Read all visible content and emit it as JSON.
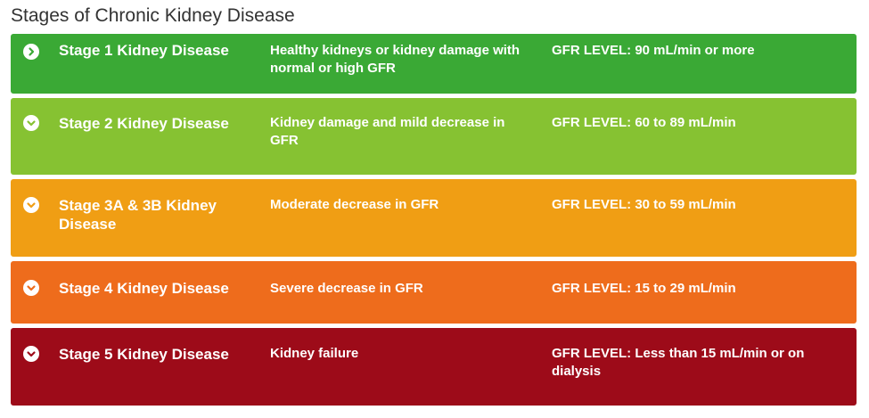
{
  "title": "Stages of Chronic Kidney Disease",
  "stages": [
    {
      "name": "Stage 1 Kidney Disease",
      "description": "Healthy kidneys or kidney damage with normal or high GFR",
      "gfr": "GFR LEVEL: 90 mL/min or more",
      "color": "#3aa935",
      "icon": "chevron-right-icon"
    },
    {
      "name": "Stage 2 Kidney Disease",
      "description": "Kidney damage and mild decrease in GFR",
      "gfr": "GFR LEVEL: 60 to 89 mL/min",
      "color": "#86c232",
      "icon": "chevron-down-icon"
    },
    {
      "name": "Stage 3A & 3B Kidney Disease",
      "description": "Moderate decrease in GFR",
      "gfr": "GFR LEVEL: 30 to 59 mL/min",
      "color": "#f09e14",
      "icon": "chevron-down-icon"
    },
    {
      "name": "Stage 4 Kidney Disease",
      "description": "Severe decrease in GFR",
      "gfr": "GFR LEVEL: 15 to 29 mL/min",
      "color": "#ee6c1c",
      "icon": "chevron-down-icon"
    },
    {
      "name": "Stage 5 Kidney Disease",
      "description": "Kidney failure",
      "gfr": "GFR LEVEL: Less than 15 mL/min or on dialysis",
      "color": "#9d0b19",
      "icon": "chevron-down-icon"
    }
  ]
}
